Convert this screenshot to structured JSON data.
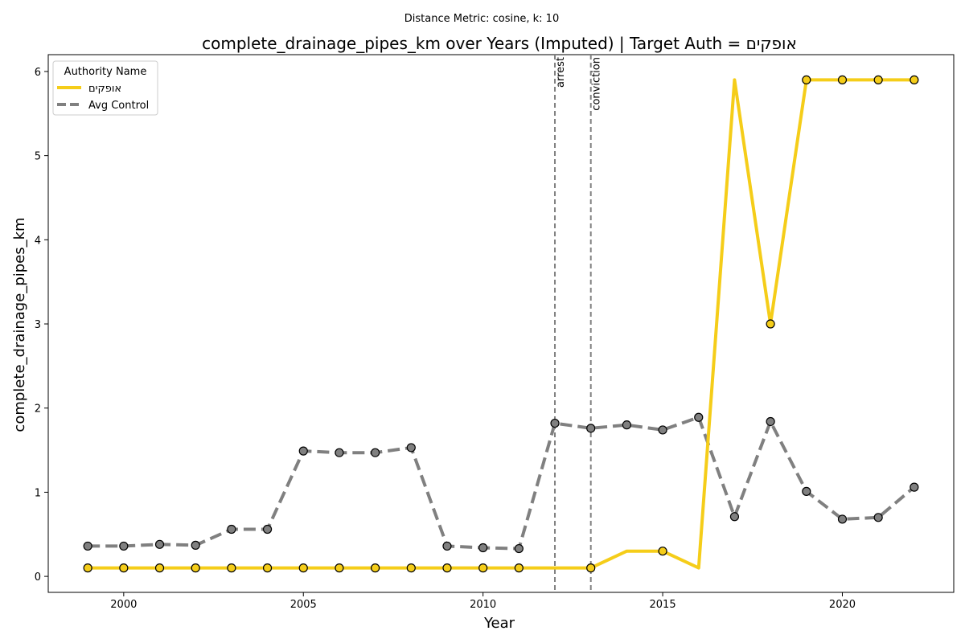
{
  "suptitle": "Distance Metric: cosine, k: 10",
  "chart_data": {
    "type": "line",
    "title": "complete_drainage_pipes_km over Years (Imputed) | Target Auth = אופקים",
    "xlabel": "Year",
    "ylabel": "complete_drainage_pipes_km",
    "xlim": [
      1997.9,
      2023.1
    ],
    "ylim": [
      -0.19,
      6.2
    ],
    "xticks": [
      2000,
      2005,
      2010,
      2015,
      2020
    ],
    "yticks": [
      0,
      1,
      2,
      3,
      4,
      5,
      6
    ],
    "grid": false,
    "legend": {
      "title": "Authority Name",
      "placement": "upper-left"
    },
    "series": [
      {
        "name": "Avg Control",
        "color": "#808080",
        "line_style": "dashed",
        "x": [
          1999,
          2000,
          2001,
          2002,
          2003,
          2004,
          2005,
          2006,
          2007,
          2008,
          2009,
          2010,
          2011,
          2012,
          2013,
          2014,
          2015,
          2016,
          2017,
          2018,
          2019,
          2020,
          2021,
          2022
        ],
        "values": [
          0.36,
          0.36,
          0.38,
          0.37,
          0.56,
          0.56,
          1.49,
          1.47,
          1.47,
          1.53,
          0.36,
          0.34,
          0.33,
          1.82,
          1.76,
          1.8,
          1.74,
          1.89,
          0.71,
          1.84,
          1.01,
          0.68,
          0.7,
          1.06
        ],
        "markers": [
          true,
          true,
          true,
          true,
          true,
          true,
          true,
          true,
          true,
          true,
          true,
          true,
          true,
          true,
          true,
          true,
          true,
          true,
          true,
          true,
          true,
          true,
          true,
          true
        ]
      },
      {
        "name": "אופקים",
        "color": "#f5cd19",
        "line_style": "solid",
        "x": [
          1999,
          2000,
          2001,
          2002,
          2003,
          2004,
          2005,
          2006,
          2007,
          2008,
          2009,
          2010,
          2011,
          2012,
          2013,
          2014,
          2015,
          2016,
          2017,
          2018,
          2019,
          2020,
          2021,
          2022
        ],
        "values": [
          0.1,
          0.1,
          0.1,
          0.1,
          0.1,
          0.1,
          0.1,
          0.1,
          0.1,
          0.1,
          0.1,
          0.1,
          0.1,
          0.1,
          0.1,
          0.3,
          0.3,
          0.1,
          5.9,
          3.0,
          5.9,
          5.9,
          5.9,
          5.9
        ],
        "markers": [
          true,
          true,
          true,
          true,
          true,
          true,
          true,
          true,
          true,
          true,
          true,
          true,
          true,
          false,
          true,
          false,
          true,
          false,
          false,
          true,
          true,
          true,
          true,
          true
        ]
      }
    ],
    "annotations": [
      {
        "x": 2012,
        "label": "arrest"
      },
      {
        "x": 2013,
        "label": "conviction"
      }
    ]
  }
}
